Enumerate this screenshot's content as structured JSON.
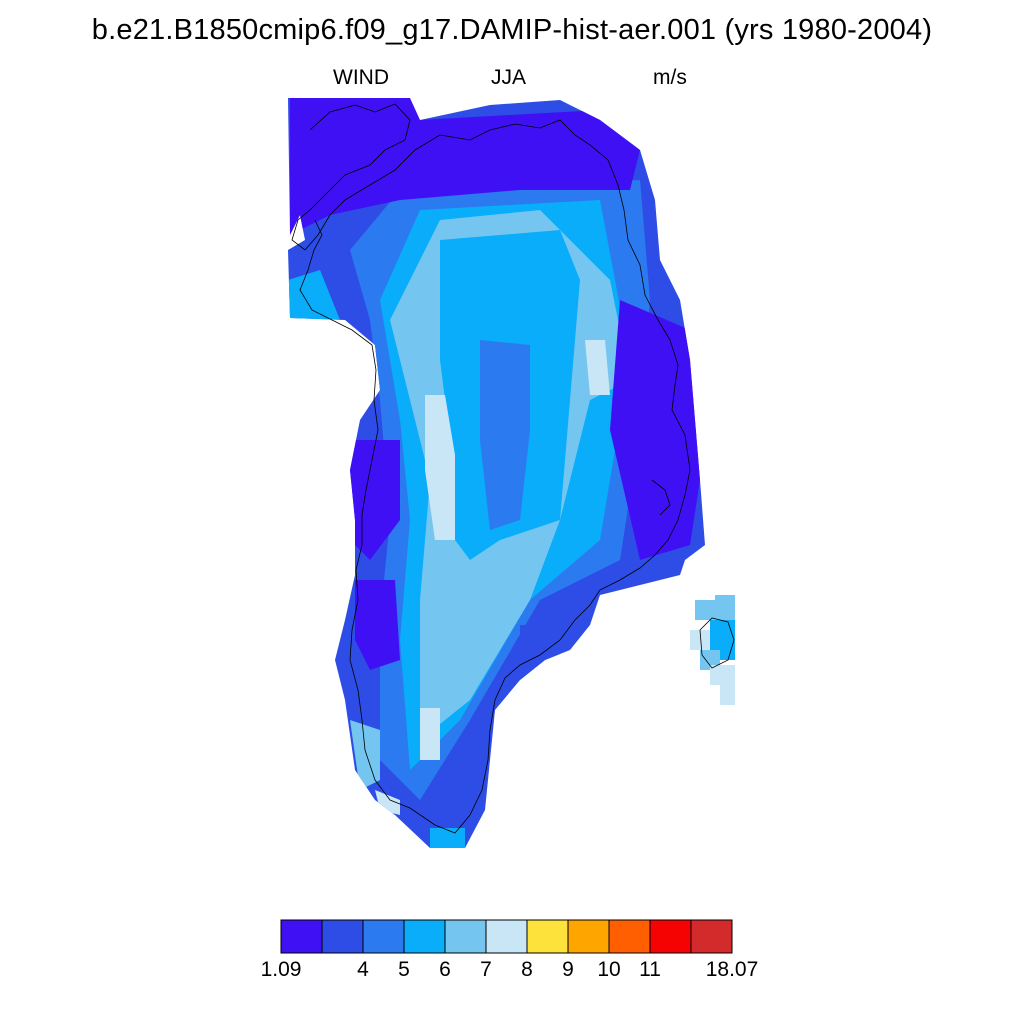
{
  "title": "b.e21.B1850cmip6.f09_g17.DAMIP-hist-aer.001 (yrs 1980-2004)",
  "subtitle_left": "WIND",
  "subtitle_center": "JJA",
  "subtitle_right": "m/s",
  "colorbar": {
    "colors": [
      "#4010F5",
      "#2D4DE6",
      "#2B7AF0",
      "#09ADF9",
      "#74C6F0",
      "#C9E6F7",
      "#FDE23B",
      "#FFA500",
      "#FF5F00",
      "#F50303",
      "#D32B2B"
    ],
    "labels": [
      "1.09",
      "",
      "4",
      "5",
      "6",
      "7",
      "8",
      "9",
      "10",
      "11",
      "",
      "18.07"
    ]
  },
  "map": {
    "variable": "WIND",
    "units": "m/s",
    "season": "JJA",
    "region": "Greenland"
  }
}
